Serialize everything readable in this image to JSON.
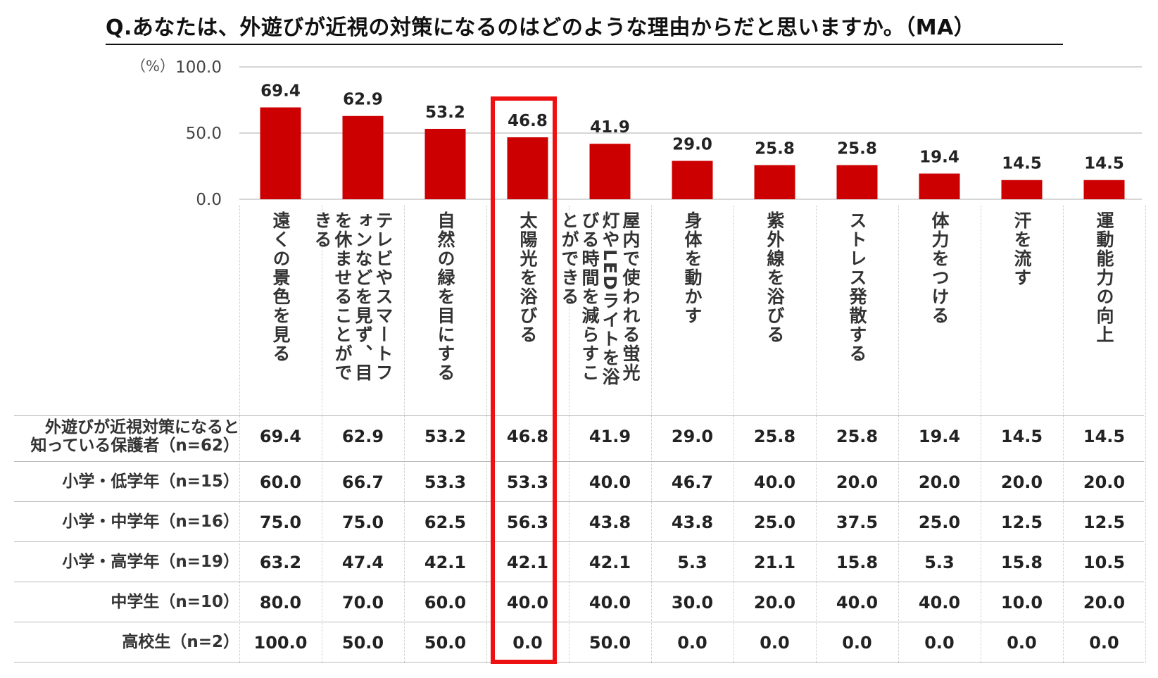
{
  "title": "Q.あなたは、外遊びが近視の対策になるのはどのような理由からだと思いますか。（MA）",
  "unit_label": "（%）",
  "colors": {
    "bar": "#cc0000",
    "highlight": "#ee1111"
  },
  "chart_data": {
    "type": "bar",
    "title": "Q.あなたは、外遊びが近視の対策になるのはどのような理由からだと思いますか。（MA）",
    "ylabel": "（%）",
    "ylim": [
      0,
      100
    ],
    "yticks": [
      "100.0",
      "50.0",
      "0.0"
    ],
    "categories": [
      "遠くの景色を見る",
      "テレビやスマートフォンなどを見ず、目を休ませることができる",
      "自然の緑を目にする",
      "太陽光を浴びる",
      "屋内で使われる蛍光灯やLEDライトを浴びる時間を減らすことができる",
      "身体を動かす",
      "紫外線を浴びる",
      "ストレス発散する",
      "体力をつける",
      "汗を流す",
      "運動能力の向上"
    ],
    "values": [
      69.4,
      62.9,
      53.2,
      46.8,
      41.9,
      29.0,
      25.8,
      25.8,
      19.4,
      14.5,
      14.5
    ],
    "value_labels": [
      "69.4",
      "62.9",
      "53.2",
      "46.8",
      "41.9",
      "29.0",
      "25.8",
      "25.8",
      "19.4",
      "14.5",
      "14.5"
    ],
    "highlighted_category_index": 3
  },
  "table": {
    "rows": [
      {
        "label_lines": [
          "外遊びが近視対策になると",
          "知っている保護者（n=62）"
        ],
        "values": [
          "69.4",
          "62.9",
          "53.2",
          "46.8",
          "41.9",
          "29.0",
          "25.8",
          "25.8",
          "19.4",
          "14.5",
          "14.5"
        ]
      },
      {
        "label_lines": [
          "小学・低学年（n=15）"
        ],
        "values": [
          "60.0",
          "66.7",
          "53.3",
          "53.3",
          "40.0",
          "46.7",
          "40.0",
          "20.0",
          "20.0",
          "20.0",
          "20.0"
        ]
      },
      {
        "label_lines": [
          "小学・中学年（n=16）"
        ],
        "values": [
          "75.0",
          "75.0",
          "62.5",
          "56.3",
          "43.8",
          "43.8",
          "25.0",
          "37.5",
          "25.0",
          "12.5",
          "12.5"
        ]
      },
      {
        "label_lines": [
          "小学・高学年（n=19）"
        ],
        "values": [
          "63.2",
          "47.4",
          "42.1",
          "42.1",
          "42.1",
          "5.3",
          "21.1",
          "15.8",
          "5.3",
          "15.8",
          "10.5"
        ]
      },
      {
        "label_lines": [
          "中学生（n=10）"
        ],
        "values": [
          "80.0",
          "70.0",
          "60.0",
          "40.0",
          "40.0",
          "30.0",
          "20.0",
          "40.0",
          "40.0",
          "10.0",
          "20.0"
        ]
      },
      {
        "label_lines": [
          "高校生（n=2）"
        ],
        "values": [
          "100.0",
          "50.0",
          "50.0",
          "0.0",
          "50.0",
          "0.0",
          "0.0",
          "0.0",
          "0.0",
          "0.0",
          "0.0"
        ]
      }
    ]
  }
}
